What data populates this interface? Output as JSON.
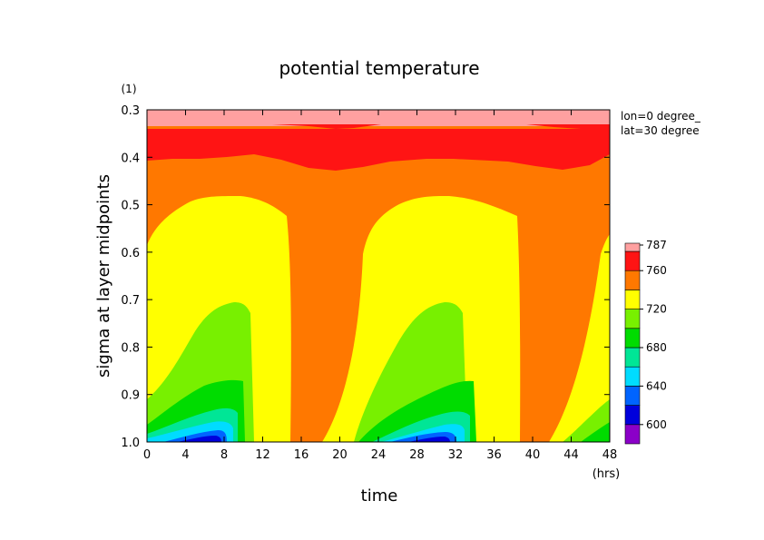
{
  "chart_data": {
    "type": "heatmap",
    "subtype": "filled-contour",
    "title": "potential temperature",
    "xlabel": "time",
    "ylabel": "sigma at layer midpoints",
    "x_unit": "(hrs)",
    "y_unit": "(1)",
    "annotation_lines": [
      "lon=0 degree_",
      "lat=30 degree"
    ],
    "xlim": [
      0,
      48
    ],
    "ylim": [
      1.0,
      0.3
    ],
    "y_inverted": true,
    "x_ticks": [
      "0",
      "4",
      "8",
      "12",
      "16",
      "20",
      "24",
      "28",
      "32",
      "36",
      "40",
      "44",
      "48"
    ],
    "y_ticks": [
      "0.3",
      "0.4",
      "0.5",
      "0.6",
      "0.7",
      "0.8",
      "0.9",
      "1.0"
    ],
    "colorbar": {
      "levels": [
        580,
        600,
        620,
        640,
        660,
        680,
        700,
        720,
        740,
        760,
        780,
        787
      ],
      "labels": [
        "787",
        "760",
        "720",
        "680",
        "640",
        "600"
      ],
      "colors": [
        "#8b00c8",
        "#0000dc",
        "#0064ff",
        "#00dcff",
        "#00e696",
        "#00dc00",
        "#78f000",
        "#ffff00",
        "#ff7800",
        "#ff1414",
        "#ffa0a0"
      ]
    },
    "contours": [
      {
        "level": 780,
        "color": "#ffa0a0",
        "description": "top layer near sigma 0.3-0.33"
      },
      {
        "level": 760,
        "color": "#ff1414",
        "sigma_boundary_by_time": [
          [
            0,
            0.41
          ],
          [
            6,
            0.4
          ],
          [
            12,
            0.38
          ],
          [
            18,
            0.37
          ],
          [
            24,
            0.38
          ],
          [
            30,
            0.4
          ],
          [
            36,
            0.4
          ],
          [
            42,
            0.37
          ],
          [
            48,
            0.36
          ]
        ]
      },
      {
        "level": 740,
        "color": "#ff7800",
        "description": "orange mid layer"
      },
      {
        "level": 720,
        "color": "#ffff00",
        "description": "diurnal yellow plumes"
      }
    ],
    "period_hours": 24
  }
}
